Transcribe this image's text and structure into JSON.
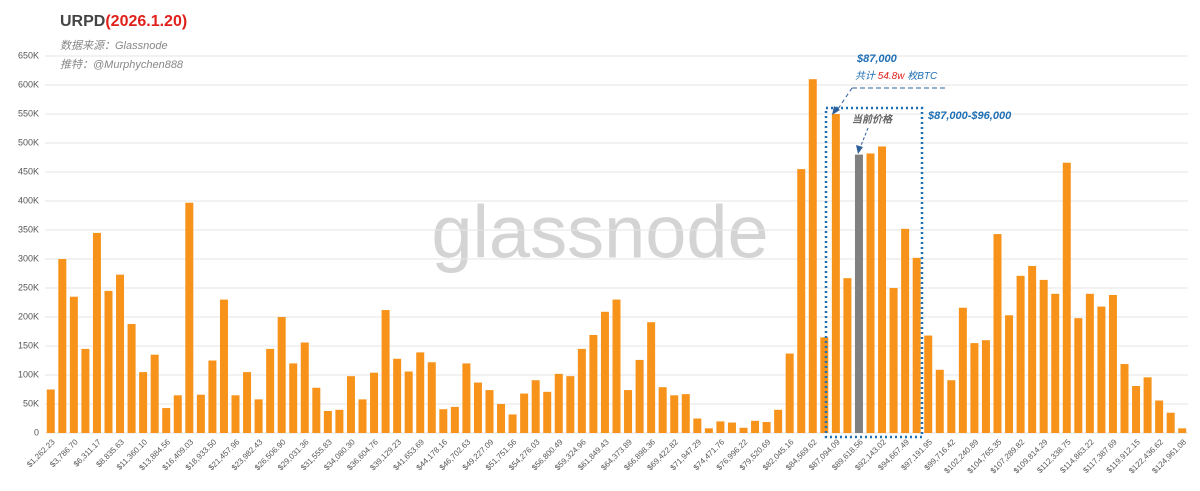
{
  "chart_data": {
    "type": "bar",
    "title_prefix": "URPD",
    "title_date": "(2026.1.20)",
    "source": "数据来源：Glassnode",
    "twitter": "推特：@Murphychen888",
    "watermark": "glassnode",
    "annotations": {
      "price": "$87,000",
      "total_prefix": "共计 ",
      "total_value": "54.8w",
      "total_suffix": " 枚BTC",
      "range": "$87,000-$96,000",
      "current": "当前价格"
    },
    "color": "#f7931a",
    "highlight": {
      "index": 70,
      "color": "#808080"
    },
    "grid": true,
    "ylim": [
      0,
      650000
    ],
    "yticks": [
      0,
      {
        "value": 50000,
        "label": "50K"
      },
      {
        "value": 100000,
        "label": "100K"
      },
      {
        "value": 150000,
        "label": "150K"
      },
      {
        "value": 200000,
        "label": "200K"
      },
      {
        "value": 250000,
        "label": "250K"
      },
      {
        "value": 300000,
        "label": "300K"
      },
      {
        "value": 350000,
        "label": "350K"
      },
      {
        "value": 400000,
        "label": "400K"
      },
      {
        "value": 450000,
        "label": "450K"
      },
      {
        "value": 500000,
        "label": "500K"
      },
      {
        "value": 550000,
        "label": "550K"
      },
      {
        "value": 600000,
        "label": "600K"
      },
      {
        "value": 650000,
        "label": "650K"
      }
    ],
    "categories": [
      "$1,262.23",
      null,
      "$3,786.70",
      null,
      "$6,311.17",
      null,
      "$8,835.63",
      null,
      "$11,360.10",
      null,
      "$13,884.56",
      null,
      "$16,409.03",
      null,
      "$18,933.50",
      null,
      "$21,457.96",
      null,
      "$23,982.43",
      null,
      "$26,506.90",
      null,
      "$29,031.36",
      null,
      "$31,555.83",
      null,
      "$34,080.30",
      null,
      "$36,604.76",
      null,
      "$39,129.23",
      null,
      "$41,653.69",
      null,
      "$44,178.16",
      null,
      "$46,702.63",
      null,
      "$49,227.09",
      null,
      "$51,751.56",
      null,
      "$54,276.03",
      null,
      "$56,800.49",
      null,
      "$59,324.96",
      null,
      "$61,849.43",
      null,
      "$64,373.89",
      null,
      "$66,898.36",
      null,
      "$69,422.82",
      null,
      "$71,947.29",
      null,
      "$74,471.76",
      null,
      "$76,996.22",
      null,
      "$79,520.69",
      null,
      "$82,045.16",
      null,
      "$84,569.62",
      null,
      "$87,094.09",
      null,
      "$89,618.56",
      null,
      "$92,143.02",
      null,
      "$94,667.49",
      null,
      "$97,191.95",
      null,
      "$99,716.42",
      null,
      "$102,240.89",
      null,
      "$104,765.35",
      null,
      "$107,289.82",
      null,
      "$109,814.29",
      null,
      "$112,338.75",
      null,
      "$114,863.22",
      null,
      "$117,387.69",
      null,
      "$119,912.15",
      null,
      "$122,436.62",
      null,
      "$124,961.08"
    ],
    "values": [
      75000,
      300000,
      235000,
      145000,
      345000,
      245000,
      273000,
      188000,
      105000,
      135000,
      43000,
      65000,
      397000,
      66000,
      125000,
      230000,
      65000,
      105000,
      58000,
      145000,
      200000,
      120000,
      156000,
      78000,
      38000,
      40000,
      98000,
      58000,
      104000,
      212000,
      128000,
      106000,
      139000,
      122000,
      41000,
      45000,
      120000,
      87000,
      74000,
      50000,
      32000,
      68000,
      91000,
      71000,
      102000,
      98000,
      145000,
      169000,
      209000,
      230000,
      74000,
      126000,
      191000,
      79000,
      65000,
      67000,
      25000,
      8000,
      20000,
      18000,
      9000,
      21000,
      19000,
      40000,
      137000,
      455000,
      610000,
      165000,
      550000,
      267000,
      480000,
      482000,
      494000,
      250000,
      352000,
      302000,
      168000,
      109000,
      91000,
      216000,
      155000,
      160000,
      343000,
      203000,
      271000,
      288000,
      264000,
      240000,
      466000,
      198000,
      240000,
      218000,
      238000,
      119000,
      81000,
      96000,
      56000,
      35000,
      8000
    ]
  }
}
